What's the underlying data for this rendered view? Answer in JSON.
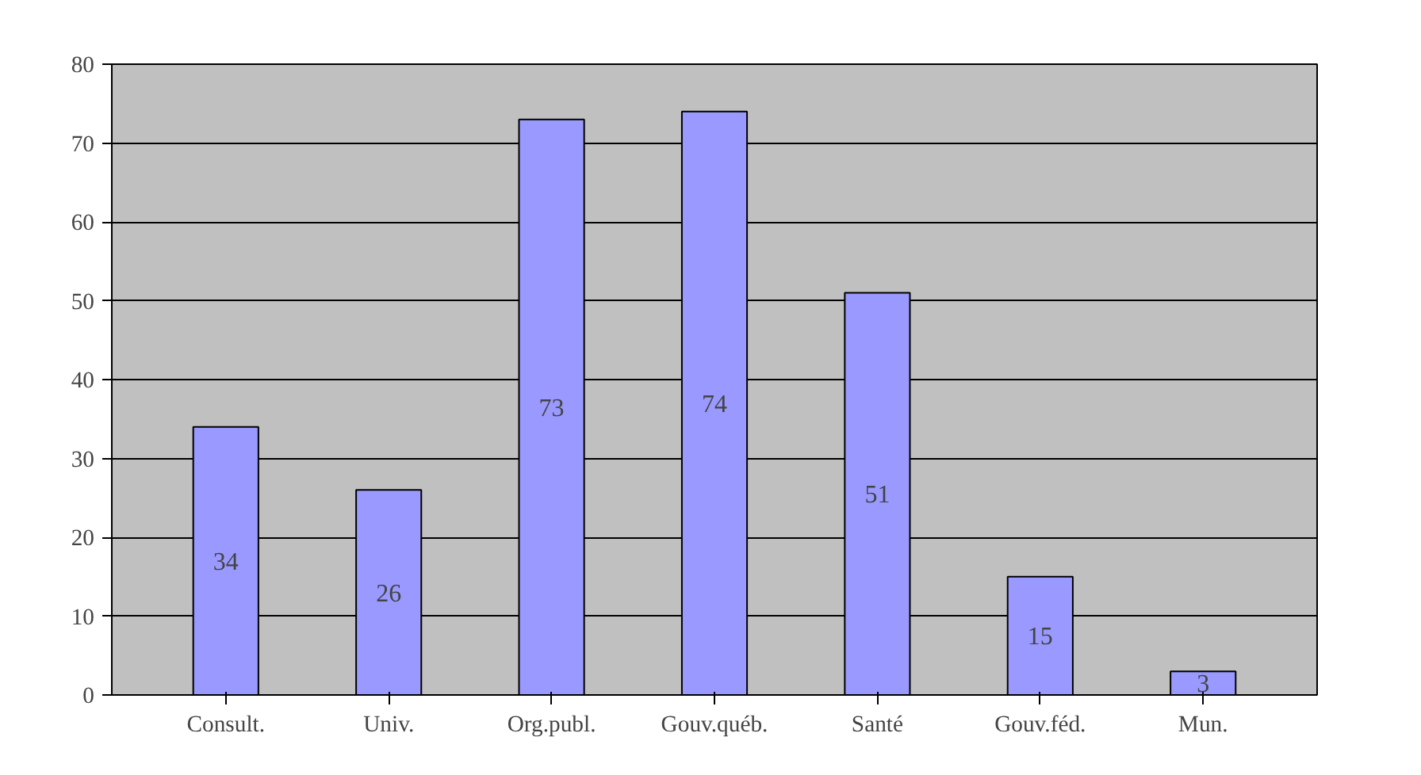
{
  "chart_data": {
    "type": "bar",
    "categories": [
      "Consult.",
      "Univ.",
      "Org.publ.",
      "Gouv.québ.",
      "Santé",
      "Gouv.féd.",
      "Mun."
    ],
    "values": [
      34,
      26,
      73,
      74,
      51,
      15,
      3
    ],
    "color": "#9999ff",
    "ylim": [
      0,
      80
    ],
    "yticks": [
      0,
      10,
      20,
      30,
      40,
      50,
      60,
      70,
      80
    ],
    "grid": "y",
    "data_labels": true
  }
}
